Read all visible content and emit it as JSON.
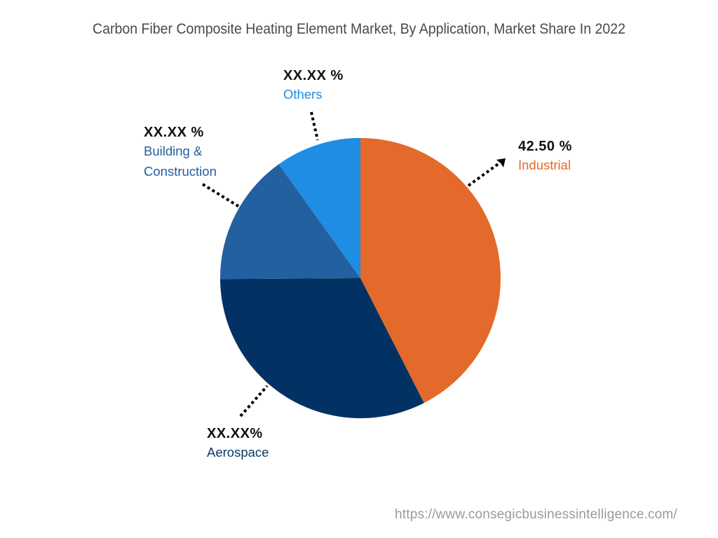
{
  "chart_data": {
    "type": "pie",
    "title": "Carbon Fiber Composite Heating Element Market, By Application, Market Share In 2022",
    "start_angle_deg": 0,
    "direction": "clockwise",
    "center": [
      514,
      397
    ],
    "radius": 200,
    "slices": [
      {
        "name": "Industrial",
        "label": "42.50 %",
        "value": 42.5,
        "color": "#E36A2B"
      },
      {
        "name": "Aerospace",
        "label": "XX.XX%",
        "value": 32.4,
        "color": "#023263"
      },
      {
        "name": "Building & Construction",
        "label": "XX.XX %",
        "value": 15.2,
        "color": "#22609F"
      },
      {
        "name": "Others",
        "label": "XX.XX %",
        "value": 9.9,
        "color": "#1E8DE3"
      }
    ],
    "legend": "none (callout labels)"
  },
  "title": "Carbon Fiber Composite Heating Element Market, By Application, Market Share In 2022",
  "labels": {
    "industrial": {
      "value": "42.50 %",
      "name": "Industrial",
      "color": "#E36A2B"
    },
    "aerospace": {
      "value": "XX.XX%",
      "name": "Aerospace",
      "color": "#0B3A6B"
    },
    "building": {
      "value": "XX.XX %",
      "name_line1": "Building &",
      "name_line2": "Construction",
      "color": "#22609F"
    },
    "others": {
      "value": "XX.XX %",
      "name": "Others",
      "color": "#1E8DE3"
    }
  },
  "footer": {
    "url": "https://www.consegicbusinessintelligence.com/"
  }
}
